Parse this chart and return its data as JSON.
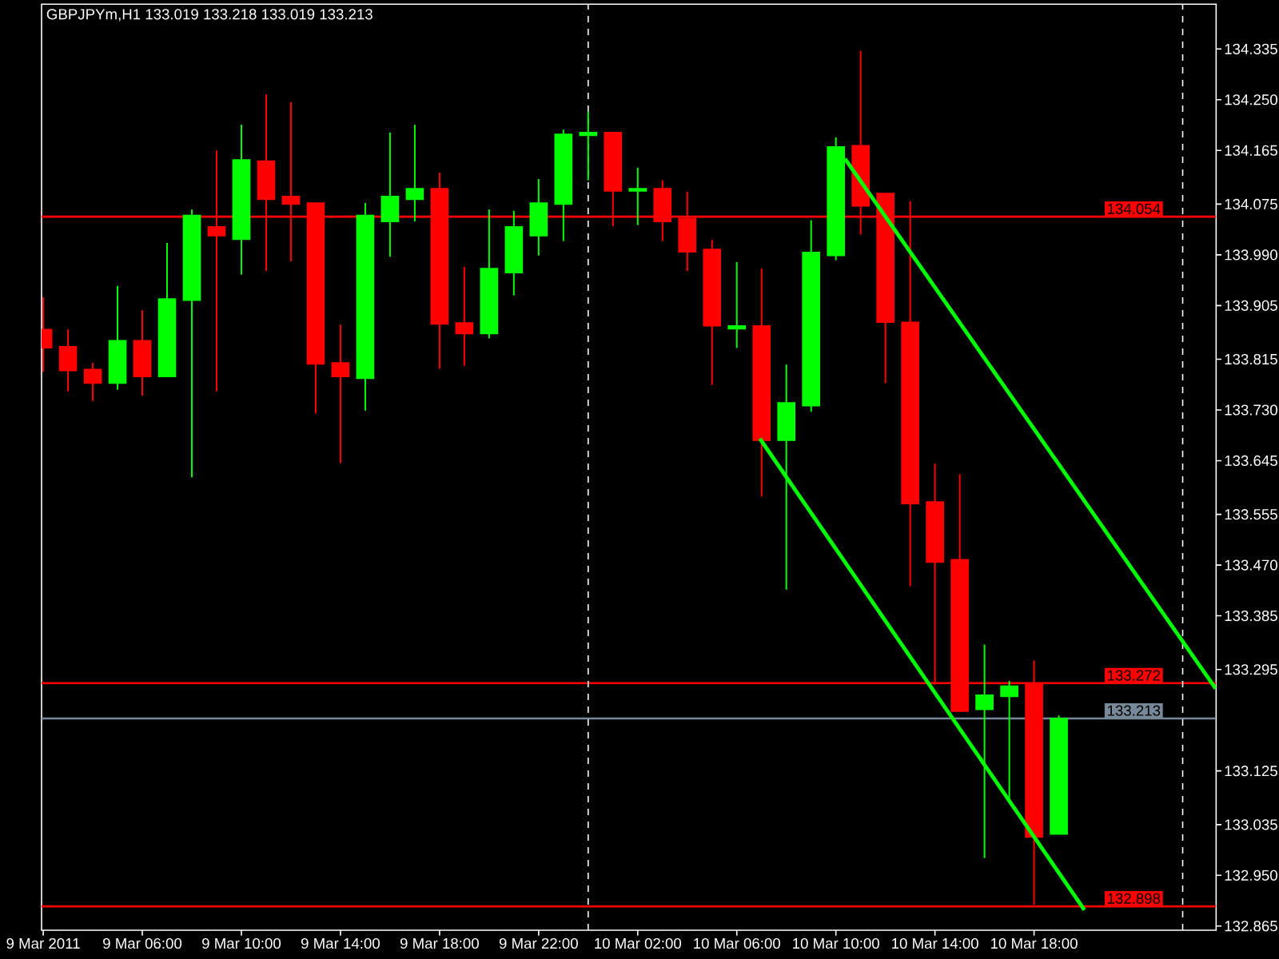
{
  "chart_data": {
    "type": "candlestick",
    "title": "GBPJPYm,H1  133.019 133.218 133.019 133.213",
    "x": [
      "2011-03-09T02:00",
      "2011-03-09T03:00",
      "2011-03-09T04:00",
      "2011-03-09T05:00",
      "2011-03-09T06:00",
      "2011-03-09T07:00",
      "2011-03-09T08:00",
      "2011-03-09T09:00",
      "2011-03-09T10:00",
      "2011-03-09T11:00",
      "2011-03-09T12:00",
      "2011-03-09T13:00",
      "2011-03-09T14:00",
      "2011-03-09T15:00",
      "2011-03-09T16:00",
      "2011-03-09T17:00",
      "2011-03-09T18:00",
      "2011-03-09T19:00",
      "2011-03-09T20:00",
      "2011-03-09T21:00",
      "2011-03-09T22:00",
      "2011-03-09T23:00",
      "2011-03-10T00:00",
      "2011-03-10T01:00",
      "2011-03-10T02:00",
      "2011-03-10T03:00",
      "2011-03-10T04:00",
      "2011-03-10T05:00",
      "2011-03-10T06:00",
      "2011-03-10T07:00",
      "2011-03-10T08:00",
      "2011-03-10T09:00",
      "2011-03-10T10:00",
      "2011-03-10T11:00",
      "2011-03-10T12:00",
      "2011-03-10T13:00",
      "2011-03-10T14:00",
      "2011-03-10T15:00",
      "2011-03-10T16:00",
      "2011-03-10T17:00",
      "2011-03-10T18:00",
      "2011-03-10T19:00"
    ],
    "ohlc": [
      [
        133.865,
        133.919,
        133.794,
        133.834
      ],
      [
        133.836,
        133.865,
        133.761,
        133.796
      ],
      [
        133.798,
        133.809,
        133.745,
        133.775
      ],
      [
        133.775,
        133.938,
        133.764,
        133.846
      ],
      [
        133.846,
        133.897,
        133.754,
        133.786
      ],
      [
        133.786,
        134.01,
        133.786,
        133.916
      ],
      [
        133.914,
        134.066,
        133.617,
        134.056
      ],
      [
        134.037,
        134.165,
        133.761,
        134.022
      ],
      [
        134.016,
        134.208,
        133.957,
        134.149
      ],
      [
        134.147,
        134.259,
        133.963,
        134.083
      ],
      [
        134.088,
        134.246,
        133.979,
        134.075
      ],
      [
        134.077,
        134.077,
        133.724,
        133.807
      ],
      [
        133.809,
        133.873,
        133.641,
        133.786
      ],
      [
        133.783,
        134.077,
        133.729,
        134.056
      ],
      [
        134.046,
        134.195,
        133.987,
        134.088
      ],
      [
        134.083,
        134.208,
        134.046,
        134.101
      ],
      [
        134.101,
        134.128,
        133.799,
        133.874
      ],
      [
        133.876,
        133.97,
        133.804,
        133.858
      ],
      [
        133.858,
        134.066,
        133.85,
        133.967
      ],
      [
        133.96,
        134.064,
        133.922,
        134.037
      ],
      [
        134.022,
        134.117,
        133.989,
        134.077
      ],
      [
        134.075,
        134.2,
        134.013,
        134.192
      ],
      [
        134.19,
        134.23,
        134.115,
        134.195
      ],
      [
        134.195,
        134.195,
        134.038,
        134.097
      ],
      [
        134.097,
        134.136,
        134.04,
        134.101
      ],
      [
        134.101,
        134.115,
        134.013,
        134.046
      ],
      [
        134.051,
        134.096,
        133.963,
        133.995
      ],
      [
        133.999,
        134.015,
        133.772,
        133.871
      ],
      [
        133.866,
        133.978,
        133.834,
        133.871
      ],
      [
        133.871,
        133.967,
        133.585,
        133.679
      ],
      [
        133.679,
        133.806,
        133.429,
        133.742
      ],
      [
        133.737,
        134.048,
        133.727,
        133.994
      ],
      [
        133.989,
        134.187,
        133.981,
        134.171
      ],
      [
        134.173,
        134.332,
        134.024,
        134.072
      ],
      [
        134.093,
        134.093,
        133.775,
        133.877
      ],
      [
        133.877,
        134.08,
        133.435,
        133.573
      ],
      [
        133.576,
        133.64,
        133.27,
        133.475
      ],
      [
        133.479,
        133.622,
        133.225,
        133.225
      ],
      [
        133.228,
        133.337,
        132.979,
        133.252
      ],
      [
        133.25,
        133.276,
        133.077,
        133.267
      ],
      [
        133.27,
        133.31,
        132.901,
        133.014
      ],
      [
        133.019,
        133.218,
        133.019,
        133.213
      ]
    ],
    "colors": [
      "#ff0000",
      "#ff0000",
      "#ff0000",
      "#00ff00",
      "#ff0000",
      "#00ff00",
      "#00ff00",
      "#ff0000",
      "#00ff00",
      "#ff0000",
      "#ff0000",
      "#ff0000",
      "#ff0000",
      "#00ff00",
      "#00ff00",
      "#00ff00",
      "#ff0000",
      "#ff0000",
      "#00ff00",
      "#00ff00",
      "#00ff00",
      "#00ff00",
      "#00ff00",
      "#ff0000",
      "#00ff00",
      "#ff0000",
      "#ff0000",
      "#ff0000",
      "#00ff00",
      "#ff0000",
      "#00ff00",
      "#00ff00",
      "#00ff00",
      "#ff0000",
      "#ff0000",
      "#ff0000",
      "#ff0000",
      "#ff0000",
      "#00ff00",
      "#00ff00",
      "#ff0000",
      "#00ff00"
    ],
    "series": [
      {
        "type": "line",
        "color": "#00ff00",
        "x": [
          "2011-03-10T10:22",
          "2011-03-11T01:20"
        ],
        "values": [
          134.151,
          133.263
        ]
      },
      {
        "type": "line",
        "color": "#00ff00",
        "x": [
          "2011-03-10T06:56",
          "2011-03-10T20:02"
        ],
        "values": [
          133.682,
          132.892
        ]
      }
    ],
    "xlim": [
      "2011-03-09T01:56",
      "2011-03-11T01:21"
    ],
    "ylim": [
      132.858,
      134.41
    ],
    "xticks": [
      {
        "value": "2011-03-09T02:00",
        "label": "9 Mar 2011"
      },
      {
        "value": "2011-03-09T06:00",
        "label": "9 Mar 06:00"
      },
      {
        "value": "2011-03-09T10:00",
        "label": "9 Mar 10:00"
      },
      {
        "value": "2011-03-09T14:00",
        "label": "9 Mar 14:00"
      },
      {
        "value": "2011-03-09T18:00",
        "label": "9 Mar 18:00"
      },
      {
        "value": "2011-03-09T22:00",
        "label": "9 Mar 22:00"
      },
      {
        "value": "2011-03-10T02:00",
        "label": "10 Mar 02:00"
      },
      {
        "value": "2011-03-10T06:00",
        "label": "10 Mar 06:00"
      },
      {
        "value": "2011-03-10T10:00",
        "label": "10 Mar 10:00"
      },
      {
        "value": "2011-03-10T14:00",
        "label": "10 Mar 14:00"
      },
      {
        "value": "2011-03-10T18:00",
        "label": "10 Mar 18:00"
      }
    ],
    "yticks": [
      {
        "value": 134.335,
        "label": "134.335"
      },
      {
        "value": 134.25,
        "label": "134.250"
      },
      {
        "value": 134.165,
        "label": "134.165"
      },
      {
        "value": 134.075,
        "label": "134.075"
      },
      {
        "value": 133.99,
        "label": "133.990"
      },
      {
        "value": 133.905,
        "label": "133.905"
      },
      {
        "value": 133.815,
        "label": "133.815"
      },
      {
        "value": 133.73,
        "label": "133.730"
      },
      {
        "value": 133.645,
        "label": "133.645"
      },
      {
        "value": 133.555,
        "label": "133.555"
      },
      {
        "value": 133.47,
        "label": "133.470"
      },
      {
        "value": 133.385,
        "label": "133.385"
      },
      {
        "value": 133.295,
        "label": "133.295"
      },
      {
        "value": 133.125,
        "label": "133.125"
      },
      {
        "value": 133.035,
        "label": "133.035"
      },
      {
        "value": 132.95,
        "label": "132.950"
      },
      {
        "value": 132.865,
        "label": "132.865"
      }
    ],
    "ref_lines": [
      {
        "axis": "y",
        "value": 134.054,
        "label": "134.054",
        "color": "#ff0000"
      },
      {
        "axis": "y",
        "value": 133.272,
        "label": "133.272",
        "color": "#ff0000"
      },
      {
        "axis": "y",
        "value": 133.213,
        "label": "133.213",
        "color": "#778899"
      },
      {
        "axis": "y",
        "value": 132.898,
        "label": "132.898",
        "color": "#ff0000"
      },
      {
        "axis": "x",
        "value": "2011-03-10T00:00",
        "color": "#ffffff",
        "line_style": "dashed"
      },
      {
        "axis": "x",
        "value": "2011-03-11T00:00",
        "color": "#ffffff",
        "line_style": "dashed"
      }
    ]
  }
}
